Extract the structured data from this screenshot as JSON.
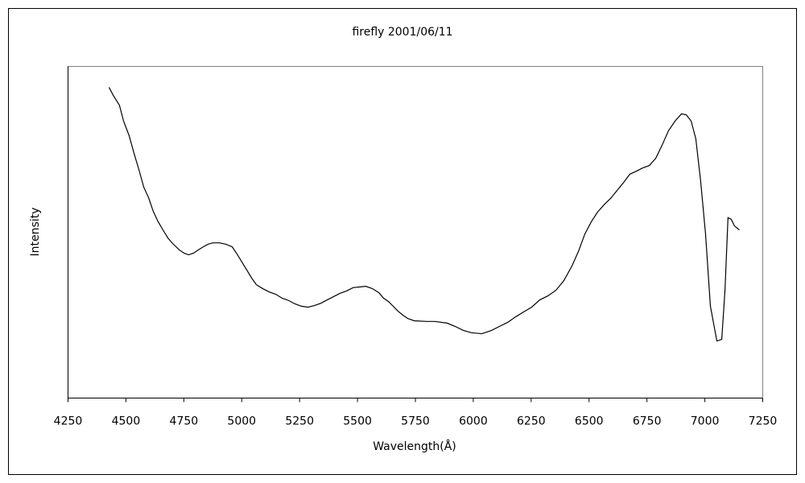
{
  "chart_data": {
    "type": "line",
    "title": "firefly  2001/06/11",
    "xlabel": "Wavelength(Å)",
    "ylabel": "Intensity",
    "xlim": [
      4250,
      7250
    ],
    "xticks": [
      4250,
      4500,
      4750,
      5000,
      5250,
      5500,
      5750,
      6000,
      6250,
      6500,
      6750,
      7000,
      7250
    ],
    "ylim": [
      0,
      100
    ],
    "grid": false,
    "color": "#000000",
    "x": [
      4427,
      4445,
      4472,
      4490,
      4514,
      4535,
      4556,
      4577,
      4598,
      4618,
      4639,
      4660,
      4681,
      4702,
      4730,
      4751,
      4771,
      4792,
      4813,
      4834,
      4855,
      4876,
      4904,
      4931,
      4959,
      4980,
      5001,
      5022,
      5043,
      5063,
      5091,
      5119,
      5147,
      5175,
      5203,
      5230,
      5258,
      5286,
      5314,
      5342,
      5369,
      5397,
      5425,
      5453,
      5481,
      5508,
      5536,
      5564,
      5592,
      5613,
      5634,
      5654,
      5675,
      5696,
      5717,
      5745,
      5800,
      5835,
      5887,
      5922,
      5957,
      5992,
      6037,
      6079,
      6113,
      6148,
      6183,
      6218,
      6252,
      6287,
      6322,
      6357,
      6391,
      6426,
      6454,
      6482,
      6510,
      6537,
      6565,
      6593,
      6621,
      6649,
      6676,
      6704,
      6732,
      6760,
      6788,
      6815,
      6843,
      6871,
      6899,
      6920,
      6941,
      6961,
      6982,
      7003,
      7024,
      7052,
      7073,
      7087,
      7100,
      7114,
      7128,
      7149
    ],
    "values": [
      93.7,
      91.3,
      88.3,
      83.5,
      79.1,
      73.8,
      68.9,
      63.6,
      60.4,
      56.3,
      53.2,
      50.7,
      48.3,
      46.6,
      44.7,
      43.7,
      43.2,
      43.7,
      44.7,
      45.6,
      46.4,
      46.8,
      46.8,
      46.4,
      45.6,
      43.4,
      41.0,
      38.6,
      36.2,
      34.2,
      33.0,
      32.0,
      31.3,
      30.1,
      29.4,
      28.4,
      27.7,
      27.4,
      27.9,
      28.6,
      29.6,
      30.6,
      31.6,
      32.3,
      33.3,
      33.5,
      33.7,
      33.0,
      31.8,
      30.1,
      29.1,
      27.7,
      26.2,
      25.0,
      24.0,
      23.3,
      23.1,
      23.1,
      22.6,
      21.6,
      20.4,
      19.7,
      19.4,
      20.4,
      21.6,
      22.8,
      24.5,
      26.0,
      27.4,
      29.6,
      30.8,
      32.5,
      35.4,
      39.8,
      44.2,
      49.5,
      53.2,
      56.1,
      58.3,
      60.2,
      62.6,
      65.0,
      67.5,
      68.4,
      69.4,
      70.1,
      72.3,
      76.2,
      80.6,
      83.5,
      85.7,
      85.4,
      83.5,
      78.2,
      65.3,
      49.5,
      27.7,
      17.2,
      17.7,
      32.5,
      54.4,
      53.9,
      51.9,
      50.7
    ]
  }
}
